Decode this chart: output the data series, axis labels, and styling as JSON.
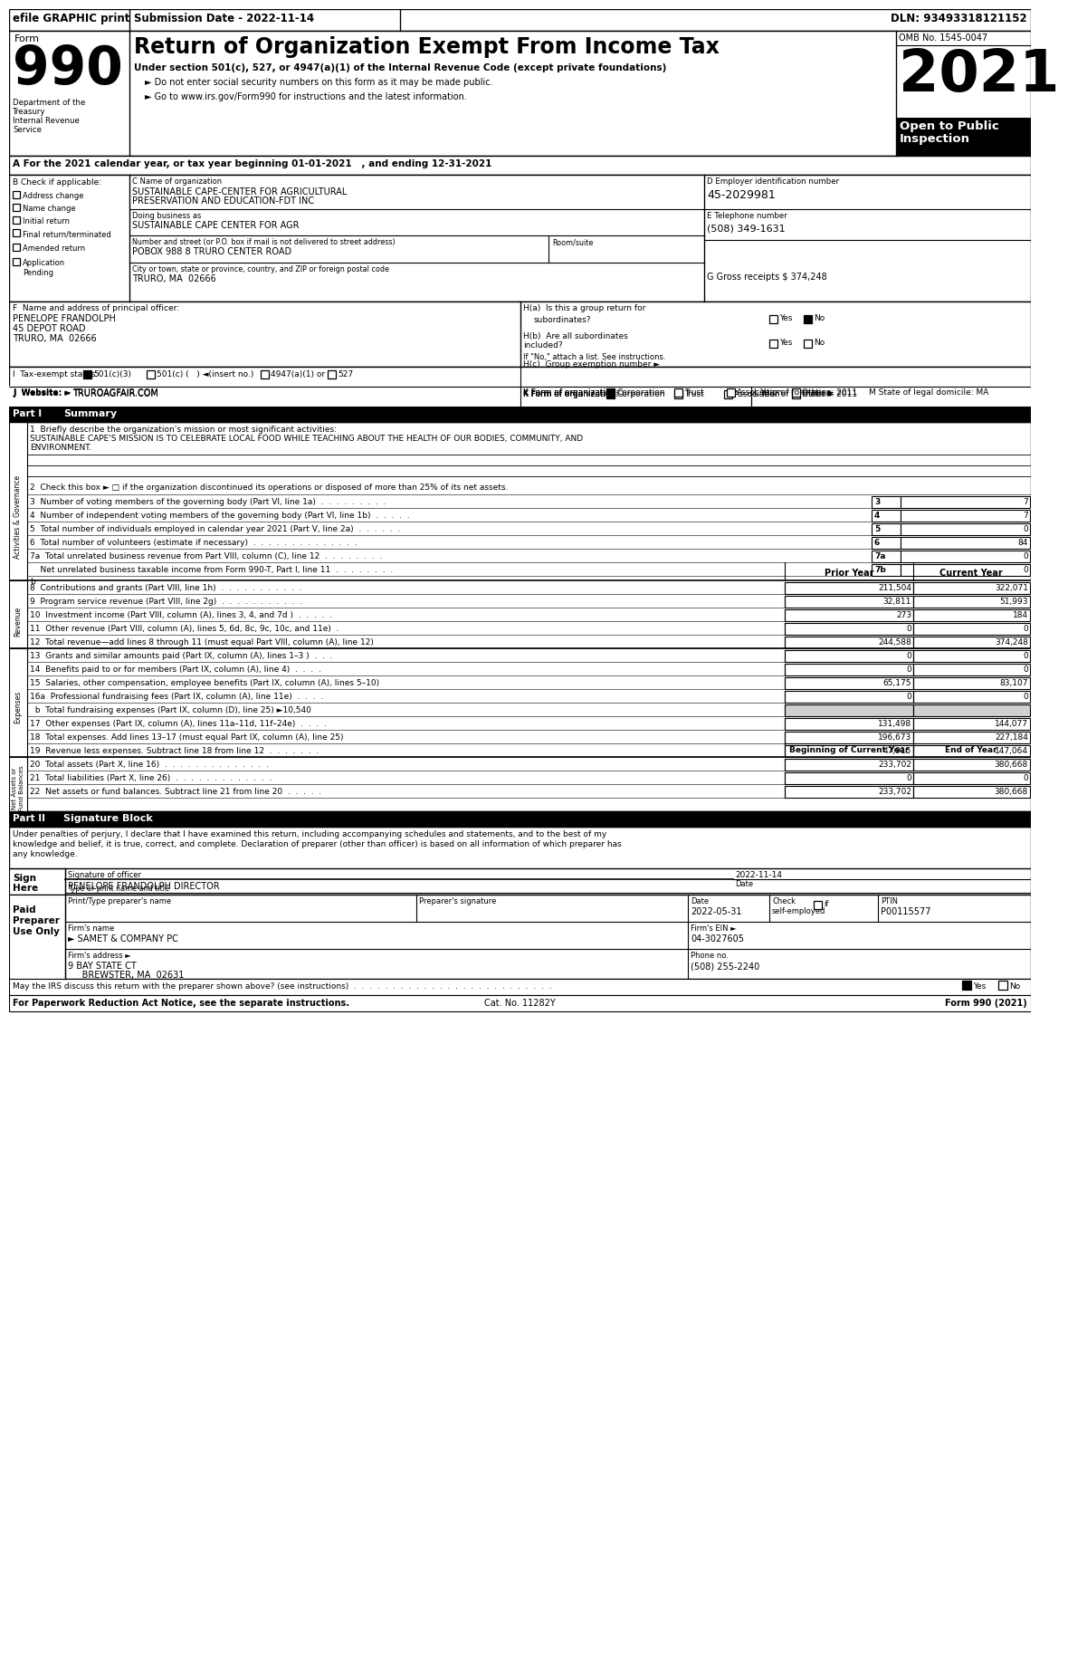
{
  "title_bar_text": "efile GRAPHIC print",
  "submission_date": "Submission Date - 2022-11-14",
  "dln": "DLN: 93493318121152",
  "form_title": "Return of Organization Exempt From Income Tax",
  "subtitle1": "Under section 501(c), 527, or 4947(a)(1) of the Internal Revenue Code (except private foundations)",
  "subtitle2": "► Do not enter social security numbers on this form as it may be made public.",
  "subtitle3": "► Go to www.irs.gov/Form990 for instructions and the latest information.",
  "omb": "OMB No. 1545-0047",
  "year": "2021",
  "open_public": "Open to Public\nInspection",
  "tax_year_line": "A For the 2021 calendar year, or tax year beginning 01-01-2021   , and ending 12-31-2021",
  "check_applicable": "B Check if applicable:",
  "checks": [
    "Address change",
    "Name change",
    "Initial return",
    "Final return/terminated",
    "Amended return",
    "Application\nPending"
  ],
  "org_name_label": "C Name of organization",
  "org_name1": "SUSTAINABLE CAPE-CENTER FOR AGRICULTURAL",
  "org_name2": "PRESERVATION AND EDUCATION-FDT INC",
  "dba_label": "Doing business as",
  "dba": "SUSTAINABLE CAPE CENTER FOR AGR",
  "street_label": "Number and street (or P.O. box if mail is not delivered to street address)",
  "street": "POBOX 988 8 TRURO CENTER ROAD",
  "room_label": "Room/suite",
  "city_label": "City or town, state or province, country, and ZIP or foreign postal code",
  "city": "TRURO, MA  02666",
  "ein_label": "D Employer identification number",
  "ein": "45-2029981",
  "phone_label": "E Telephone number",
  "phone": "(508) 349-1631",
  "gross_receipts": "G Gross receipts $ 374,248",
  "principal_label": "F  Name and address of principal officer:",
  "principal_name": "PENELOPE FRANDOLPH",
  "principal_addr1": "45 DEPOT ROAD",
  "principal_addr2": "TRURO, MA  02666",
  "ha_label": "H(a)  Is this a group return for",
  "ha_sub": "subordinates?",
  "hb_label1": "H(b)  Are all subordinates",
  "hb_label2": "included?",
  "hb_note": "If \"No,\" attach a list. See instructions.",
  "hc_label": "H(c)  Group exemption number ►",
  "tax_exempt_label": "I  Tax-exempt status:",
  "tax_501c3": "501(c)(3)",
  "tax_501c": "501(c) (   ) ◄(insert no.)",
  "tax_4947": "4947(a)(1) or",
  "tax_527": "527",
  "website_label": "J  Website: ►",
  "website": "TRUROAGFAIR.COM",
  "k_label": "K Form of organization:",
  "k_corp": "Corporation",
  "k_trust": "Trust",
  "k_assoc": "Association",
  "k_other": "Other ►",
  "l_label": "L Year of formation: 2011",
  "m_label": "M State of legal domicile: MA",
  "part1_label": "Part I",
  "part1_title": "Summary",
  "line1_label": "1  Briefly describe the organization’s mission or most significant activities:",
  "line1_text1": "SUSTAINABLE CAPE'S MISSION IS TO CELEBRATE LOCAL FOOD WHILE TEACHING ABOUT THE HEALTH OF OUR BODIES, COMMUNITY, AND",
  "line1_text2": "ENVIRONMENT.",
  "line2_label": "2  Check this box ► □ if the organization discontinued its operations or disposed of more than 25% of its net assets.",
  "line3_label": "3  Number of voting members of the governing body (Part VI, line 1a)  .  .  .  .  .  .  .  .  .",
  "line3_num": "3",
  "line3_val": "7",
  "line4_label": "4  Number of independent voting members of the governing body (Part VI, line 1b)  .  .  .  .  .",
  "line4_num": "4",
  "line4_val": "7",
  "line5_label": "5  Total number of individuals employed in calendar year 2021 (Part V, line 2a)  .  .  .  .  .  .",
  "line5_num": "5",
  "line5_val": "0",
  "line6_label": "6  Total number of volunteers (estimate if necessary)  .  .  .  .  .  .  .  .  .  .  .  .  .  .",
  "line6_num": "6",
  "line6_val": "84",
  "line7a_label": "7a  Total unrelated business revenue from Part VIII, column (C), line 12  .  .  .  .  .  .  .  .",
  "line7a_num": "7a",
  "line7a_val": "0",
  "line7b_label": "    Net unrelated business taxable income from Form 990-T, Part I, line 11  .  .  .  .  .  .  .  .",
  "line7b_num": "7b",
  "line7b_val": "0",
  "rev_header_prior": "Prior Year",
  "rev_header_current": "Current Year",
  "line8_label": "8  Contributions and grants (Part VIII, line 1h)  .  .  .  .  .  .  .  .  .  .  .",
  "line8_prior": "211,504",
  "line8_current": "322,071",
  "line9_label": "9  Program service revenue (Part VIII, line 2g)  .  .  .  .  .  .  .  .  .  .  .",
  "line9_prior": "32,811",
  "line9_current": "51,993",
  "line10_label": "10  Investment income (Part VIII, column (A), lines 3, 4, and 7d )  .  .  .  .  .",
  "line10_prior": "273",
  "line10_current": "184",
  "line11_label": "11  Other revenue (Part VIII, column (A), lines 5, 6d, 8c, 9c, 10c, and 11e)  .",
  "line11_prior": "0",
  "line11_current": "0",
  "line12_label": "12  Total revenue—add lines 8 through 11 (must equal Part VIII, column (A), line 12)",
  "line12_prior": "244,588",
  "line12_current": "374,248",
  "line13_label": "13  Grants and similar amounts paid (Part IX, column (A), lines 1–3 )  .  .  .",
  "line13_prior": "0",
  "line13_current": "0",
  "line14_label": "14  Benefits paid to or for members (Part IX, column (A), line 4)  .  .  .  .",
  "line14_prior": "0",
  "line14_current": "0",
  "line15_label": "15  Salaries, other compensation, employee benefits (Part IX, column (A), lines 5–10)",
  "line15_prior": "65,175",
  "line15_current": "83,107",
  "line16a_label": "16a  Professional fundraising fees (Part IX, column (A), line 11e)  .  .  .  .",
  "line16a_prior": "0",
  "line16a_current": "0",
  "line16b_label": "  b  Total fundraising expenses (Part IX, column (D), line 25) ►10,540",
  "line17_label": "17  Other expenses (Part IX, column (A), lines 11a–11d, 11f–24e)  .  .  .  .",
  "line17_prior": "131,498",
  "line17_current": "144,077",
  "line18_label": "18  Total expenses. Add lines 13–17 (must equal Part IX, column (A), line 25)",
  "line18_prior": "196,673",
  "line18_current": "227,184",
  "line19_label": "19  Revenue less expenses. Subtract line 18 from line 12  .  .  .  .  .  .  .",
  "line19_prior": "47,915",
  "line19_current": "147,064",
  "boc_header": "Beginning of Current Year",
  "eoy_header": "End of Year",
  "line20_label": "20  Total assets (Part X, line 16)  .  .  .  .  .  .  .  .  .  .  .  .  .  .",
  "line20_boc": "233,702",
  "line20_eoy": "380,668",
  "line21_label": "21  Total liabilities (Part X, line 26)  .  .  .  .  .  .  .  .  .  .  .  .  .",
  "line21_boc": "0",
  "line21_eoy": "0",
  "line22_label": "22  Net assets or fund balances. Subtract line 21 from line 20  .  .  .  .  .",
  "line22_boc": "233,702",
  "line22_eoy": "380,668",
  "part2_label": "Part II",
  "part2_title": "Signature Block",
  "sig_declaration": "Under penalties of perjury, I declare that I have examined this return, including accompanying schedules and statements, and to the best of my\nknowledge and belief, it is true, correct, and complete. Declaration of preparer (other than officer) is based on all information of which preparer has\nany knowledge.",
  "sig_officer_label": "Signature of officer",
  "sig_date": "2022-11-14",
  "sig_date_label": "Date",
  "sig_name": "PENELOPE FRANDOLPH DIRECTOR",
  "sig_title_label": "Type or print name and title",
  "preparer_name_label": "Print/Type preparer's name",
  "preparer_sig_label": "Preparer's signature",
  "preparer_date_label": "Date",
  "preparer_date": "2022-05-31",
  "preparer_check_label": "Check □ if\nself-employed",
  "preparer_ptin_label": "PTIN",
  "preparer_ptin": "P00115577",
  "firm_name_label": "Firm's name",
  "firm_name": "► SAMET & COMPANY PC",
  "firm_ein_label": "Firm's EIN ►",
  "firm_ein": "04-3027605",
  "firm_addr_label": "Firm's address ►",
  "firm_addr1": "9 BAY STATE CT",
  "firm_addr2": "BREWSTER, MA  02631",
  "firm_phone_label": "Phone no.",
  "firm_phone": "(508) 255-2240",
  "discuss_label": "May the IRS discuss this return with the preparer shown above? (see instructions)  .  .  .  .  .  .  .  .  .  .  .  .  .  .  .  .  .  .  .  .  .  .  .  .  .  .",
  "paperwork_label": "For Paperwork Reduction Act Notice, see the separate instructions.",
  "cat_no": "Cat. No. 11282Y",
  "form_bottom": "Form 990 (2021)"
}
